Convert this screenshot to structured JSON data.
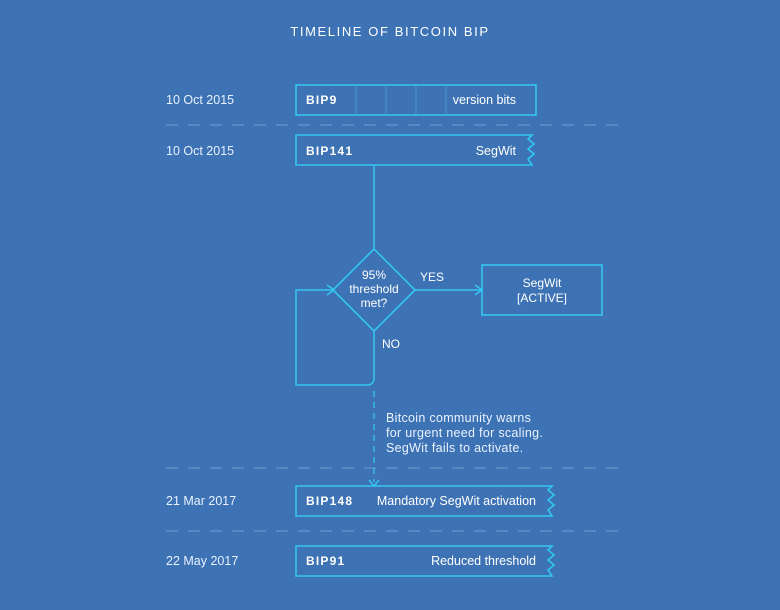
{
  "title": "TIMELINE OF BITCOIN BIP",
  "rows": [
    {
      "date": "10 Oct 2015",
      "bip": "BIP9",
      "desc": "version bits"
    },
    {
      "date": "10 Oct 2015",
      "bip": "BIP141",
      "desc": "SegWit"
    },
    {
      "date": "21 Mar 2017",
      "bip": "BIP148",
      "desc": "Mandatory SegWit activation"
    },
    {
      "date": "22 May 2017",
      "bip": "BIP91",
      "desc": "Reduced threshold"
    }
  ],
  "decision": {
    "lines": [
      "95%",
      "threshold",
      "met?"
    ],
    "yes": "YES",
    "no": "NO"
  },
  "result": {
    "lines": [
      "SegWit",
      "[ACTIVE]"
    ]
  },
  "note": {
    "lines": [
      "Bitcoin community warns",
      "for urgent need for scaling.",
      "SegWit fails to activate."
    ]
  },
  "colors": {
    "background": "#3d72b4",
    "accent": "#34c6f0"
  }
}
